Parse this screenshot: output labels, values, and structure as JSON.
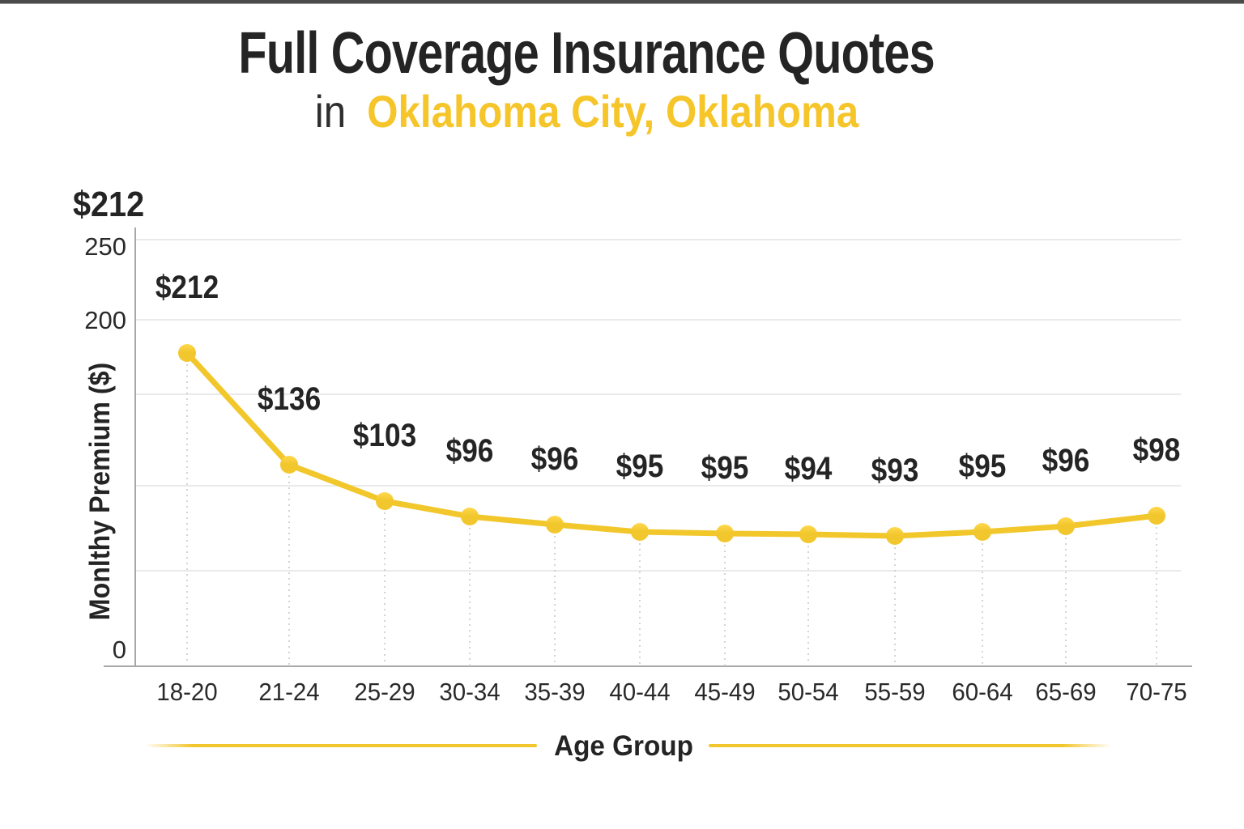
{
  "header": {
    "title": "Full Coverage Insurance Quotes",
    "subtitle_prefix": "in",
    "subtitle_location": "Oklahoma City, Oklahoma"
  },
  "y_axis_callout": "$212",
  "chart_data": {
    "type": "line",
    "title": "Full Coverage Insurance Quotes in Oklahoma City, Oklahoma",
    "xlabel": "Age Group",
    "ylabel": "Monlthy Premium ($)",
    "categories": [
      "18-20",
      "21-24",
      "25-29",
      "30-34",
      "35-39",
      "40-44",
      "45-49",
      "50-54",
      "55-59",
      "60-64",
      "65-69",
      "70-75"
    ],
    "values": [
      212,
      136,
      103,
      96,
      96,
      95,
      95,
      94,
      93,
      95,
      96,
      98
    ],
    "data_labels": [
      "$212",
      "$136",
      "$103",
      "$96",
      "$96",
      "$95",
      "$95",
      "$94",
      "$93",
      "$95",
      "$96",
      "$98"
    ],
    "y_ticks": [
      {
        "label": "250",
        "value": 250
      },
      {
        "label": "200",
        "value": 200
      },
      {
        "label": "0",
        "value": 0
      }
    ],
    "ylim": [
      0,
      250
    ],
    "grid": "horizontal-light",
    "legend": "none"
  },
  "colors": {
    "accent_line": "#f1c72b",
    "accent_point": "#f2c72e",
    "accent_point_highlight": "#ffd84d",
    "accent_text": "#f5c52a",
    "dark_text": "#242424",
    "gridline": "#e3e3e3",
    "axis_line": "#a8a8a8",
    "dropline": "#c5c5c5",
    "top_bar": "#4b4b4b"
  }
}
